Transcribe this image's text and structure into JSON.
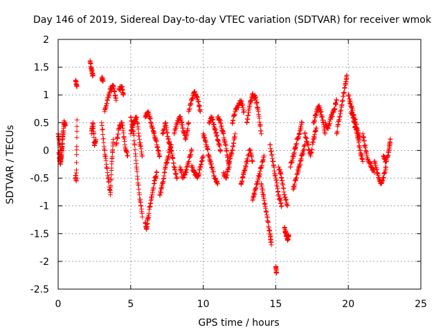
{
  "chart_data": {
    "type": "scatter",
    "title": "Day 146 of 2019, Sidereal Day-to-day VTEC variation (SDTVAR) for receiver wmok",
    "xlabel": "GPS time / hours",
    "ylabel": "SDTVAR / TECUs",
    "xlim": [
      0,
      25
    ],
    "ylim": [
      -2.5,
      2
    ],
    "x_ticks": [
      0,
      5,
      10,
      15,
      20,
      25
    ],
    "x_tick_labels": [
      "0",
      "5",
      "10",
      "15",
      "20",
      "25"
    ],
    "y_ticks": [
      2,
      1.5,
      1,
      0.5,
      0,
      -0.5,
      -1,
      -1.5,
      -2,
      -2.5
    ],
    "y_tick_labels": [
      "2",
      "1.5",
      "1",
      "0.5",
      "0",
      "-0.5",
      "-1",
      "-1.5",
      "-2",
      "-2.5"
    ],
    "grid": true,
    "marker": "+",
    "marker_color": "#ff0000",
    "series": [
      {
        "name": "SDTVAR",
        "tracks": [
          [
            [
              0.0,
              0.3
            ],
            [
              0.1,
              0.1
            ],
            [
              0.2,
              -0.2
            ],
            [
              0.3,
              0.2
            ],
            [
              0.4,
              0.5
            ],
            [
              0.5,
              0.45
            ]
          ],
          [
            [
              0.05,
              -0.05
            ],
            [
              0.15,
              -0.25
            ],
            [
              0.25,
              0.0
            ],
            [
              0.35,
              0.3
            ]
          ],
          [
            [
              1.2,
              -0.45
            ],
            [
              1.25,
              -0.55
            ],
            [
              1.3,
              0.55
            ]
          ],
          [
            [
              1.2,
              1.25
            ],
            [
              1.3,
              1.15
            ]
          ],
          [
            [
              2.2,
              1.6
            ],
            [
              2.3,
              1.45
            ],
            [
              2.4,
              1.35
            ]
          ],
          [
            [
              2.3,
              0.3
            ],
            [
              2.4,
              0.5
            ],
            [
              2.5,
              0.1
            ],
            [
              2.6,
              0.2
            ]
          ],
          [
            [
              3.0,
              1.3
            ],
            [
              3.1,
              1.25
            ]
          ],
          [
            [
              3.0,
              0.5
            ],
            [
              3.2,
              0.0
            ],
            [
              3.4,
              -0.4
            ],
            [
              3.6,
              -0.8
            ],
            [
              3.7,
              -0.2
            ],
            [
              3.8,
              0.2
            ]
          ],
          [
            [
              3.2,
              0.7
            ],
            [
              3.4,
              0.9
            ],
            [
              3.6,
              1.1
            ],
            [
              3.8,
              1.15
            ],
            [
              4.0,
              0.9
            ]
          ],
          [
            [
              4.0,
              0.1
            ],
            [
              4.2,
              0.4
            ],
            [
              4.4,
              0.5
            ],
            [
              4.6,
              0.1
            ],
            [
              4.8,
              -0.1
            ]
          ],
          [
            [
              4.2,
              1.1
            ],
            [
              4.4,
              1.15
            ],
            [
              4.5,
              1.0
            ]
          ],
          [
            [
              5.0,
              0.6
            ],
            [
              5.2,
              0.3
            ],
            [
              5.4,
              -0.3
            ],
            [
              5.6,
              -0.8
            ],
            [
              5.8,
              -1.2
            ]
          ],
          [
            [
              5.0,
              0.3
            ],
            [
              5.2,
              0.5
            ],
            [
              5.4,
              0.6
            ],
            [
              5.6,
              0.2
            ],
            [
              5.8,
              -0.1
            ]
          ],
          [
            [
              6.0,
              -1.3
            ],
            [
              6.1,
              -1.4
            ],
            [
              6.2,
              -1.2
            ],
            [
              6.4,
              -0.9
            ],
            [
              6.6,
              -0.6
            ],
            [
              6.8,
              -0.4
            ]
          ],
          [
            [
              6.0,
              0.6
            ],
            [
              6.2,
              0.7
            ],
            [
              6.4,
              0.5
            ],
            [
              6.6,
              0.3
            ],
            [
              6.8,
              0.1
            ],
            [
              7.0,
              -0.1
            ]
          ],
          [
            [
              7.0,
              -0.8
            ],
            [
              7.2,
              -0.6
            ],
            [
              7.4,
              -0.3
            ],
            [
              7.6,
              -0.1
            ],
            [
              7.8,
              0.1
            ]
          ],
          [
            [
              7.2,
              0.3
            ],
            [
              7.4,
              0.5
            ],
            [
              7.6,
              0.2
            ],
            [
              7.8,
              0.0
            ],
            [
              8.0,
              -0.3
            ],
            [
              8.2,
              -0.5
            ]
          ],
          [
            [
              8.0,
              0.3
            ],
            [
              8.2,
              0.5
            ],
            [
              8.4,
              0.6
            ],
            [
              8.6,
              0.4
            ],
            [
              8.8,
              0.2
            ],
            [
              9.0,
              0.5
            ]
          ],
          [
            [
              8.4,
              -0.3
            ],
            [
              8.6,
              -0.5
            ],
            [
              8.8,
              -0.4
            ],
            [
              9.0,
              -0.2
            ],
            [
              9.2,
              0.0
            ]
          ],
          [
            [
              9.0,
              0.7
            ],
            [
              9.2,
              0.9
            ],
            [
              9.4,
              1.05
            ],
            [
              9.6,
              0.95
            ],
            [
              9.8,
              0.7
            ]
          ],
          [
            [
              9.2,
              -0.3
            ],
            [
              9.4,
              -0.4
            ],
            [
              9.6,
              -0.5
            ],
            [
              9.8,
              -0.3
            ],
            [
              10.0,
              -0.1
            ]
          ],
          [
            [
              10.0,
              0.3
            ],
            [
              10.2,
              0.1
            ],
            [
              10.4,
              -0.1
            ],
            [
              10.6,
              -0.3
            ],
            [
              10.8,
              -0.5
            ],
            [
              11.0,
              -0.6
            ]
          ],
          [
            [
              10.4,
              0.5
            ],
            [
              10.6,
              0.6
            ],
            [
              10.8,
              0.4
            ],
            [
              11.0,
              0.2
            ],
            [
              11.2,
              0.0
            ]
          ],
          [
            [
              11.0,
              0.6
            ],
            [
              11.2,
              0.5
            ],
            [
              11.4,
              0.3
            ],
            [
              11.6,
              0.0
            ],
            [
              11.8,
              -0.3
            ]
          ],
          [
            [
              11.4,
              -0.4
            ],
            [
              11.6,
              -0.5
            ],
            [
              11.8,
              -0.2
            ],
            [
              12.0,
              0.0
            ],
            [
              12.2,
              0.3
            ]
          ],
          [
            [
              12.0,
              0.5
            ],
            [
              12.2,
              0.7
            ],
            [
              12.4,
              0.8
            ],
            [
              12.6,
              0.9
            ],
            [
              12.8,
              0.7
            ]
          ],
          [
            [
              12.6,
              -0.6
            ],
            [
              12.8,
              -0.4
            ],
            [
              13.0,
              -0.2
            ],
            [
              13.2,
              0.0
            ],
            [
              13.4,
              -0.2
            ]
          ],
          [
            [
              13.0,
              0.5
            ],
            [
              13.2,
              0.8
            ],
            [
              13.4,
              1.0
            ],
            [
              13.6,
              0.95
            ],
            [
              13.8,
              0.7
            ],
            [
              14.0,
              0.3
            ]
          ],
          [
            [
              13.4,
              -0.9
            ],
            [
              13.6,
              -0.7
            ],
            [
              13.8,
              -0.5
            ],
            [
              14.0,
              -0.3
            ],
            [
              14.2,
              -0.1
            ]
          ],
          [
            [
              14.0,
              -0.6
            ],
            [
              14.2,
              -0.9
            ],
            [
              14.4,
              -1.2
            ],
            [
              14.6,
              -1.5
            ],
            [
              14.7,
              -1.7
            ]
          ],
          [
            [
              14.6,
              0.1
            ],
            [
              14.8,
              -0.2
            ],
            [
              15.0,
              -0.5
            ],
            [
              15.2,
              -0.8
            ],
            [
              15.4,
              -1.0
            ]
          ],
          [
            [
              15.0,
              -2.1
            ],
            [
              15.05,
              -2.2
            ]
          ],
          [
            [
              15.2,
              -0.3
            ],
            [
              15.4,
              -0.5
            ],
            [
              15.6,
              -0.8
            ],
            [
              15.8,
              -1.0
            ]
          ],
          [
            [
              15.6,
              -1.4
            ],
            [
              15.7,
              -1.5
            ],
            [
              15.8,
              -1.6
            ],
            [
              15.9,
              -1.55
            ]
          ],
          [
            [
              16.0,
              -0.3
            ],
            [
              16.2,
              -0.1
            ],
            [
              16.4,
              0.1
            ],
            [
              16.6,
              0.3
            ],
            [
              16.8,
              0.5
            ]
          ],
          [
            [
              16.2,
              -0.7
            ],
            [
              16.4,
              -0.5
            ],
            [
              16.6,
              -0.3
            ],
            [
              16.8,
              -0.1
            ],
            [
              17.0,
              0.1
            ]
          ],
          [
            [
              17.0,
              0.3
            ],
            [
              17.2,
              0.1
            ],
            [
              17.4,
              -0.1
            ],
            [
              17.6,
              0.2
            ],
            [
              17.8,
              0.4
            ]
          ],
          [
            [
              17.6,
              0.5
            ],
            [
              17.8,
              0.7
            ],
            [
              18.0,
              0.8
            ],
            [
              18.2,
              0.6
            ],
            [
              18.4,
              0.3
            ]
          ],
          [
            [
              18.4,
              0.5
            ],
            [
              18.6,
              0.4
            ],
            [
              18.8,
              0.6
            ],
            [
              19.0,
              0.7
            ],
            [
              19.2,
              0.9
            ]
          ],
          [
            [
              19.2,
              0.3
            ],
            [
              19.4,
              0.6
            ],
            [
              19.6,
              0.9
            ],
            [
              19.8,
              1.2
            ],
            [
              19.9,
              1.35
            ]
          ],
          [
            [
              20.0,
              1.0
            ],
            [
              20.2,
              0.8
            ],
            [
              20.4,
              0.6
            ],
            [
              20.6,
              0.4
            ],
            [
              20.8,
              0.2
            ]
          ],
          [
            [
              20.2,
              0.7
            ],
            [
              20.4,
              0.5
            ],
            [
              20.6,
              0.3
            ],
            [
              20.8,
              0.0
            ],
            [
              21.0,
              -0.2
            ]
          ],
          [
            [
              21.0,
              0.3
            ],
            [
              21.2,
              0.0
            ],
            [
              21.4,
              -0.2
            ],
            [
              21.6,
              -0.3
            ],
            [
              21.8,
              -0.4
            ]
          ],
          [
            [
              21.8,
              -0.2
            ],
            [
              22.0,
              -0.4
            ],
            [
              22.2,
              -0.6
            ],
            [
              22.4,
              -0.5
            ],
            [
              22.6,
              -0.3
            ]
          ],
          [
            [
              22.4,
              -0.1
            ],
            [
              22.6,
              -0.2
            ],
            [
              22.8,
              0.0
            ],
            [
              22.9,
              0.2
            ]
          ]
        ]
      }
    ]
  }
}
